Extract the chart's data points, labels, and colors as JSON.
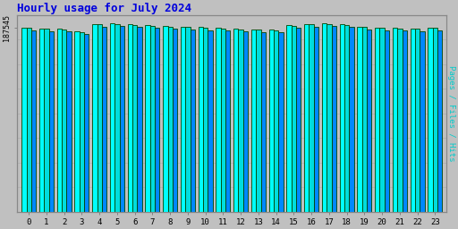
{
  "title": "Hourly usage for July 2024",
  "title_color": "#0000dd",
  "title_fontsize": 9,
  "hours": [
    0,
    1,
    2,
    3,
    4,
    5,
    6,
    7,
    8,
    9,
    10,
    11,
    12,
    13,
    14,
    15,
    16,
    17,
    18,
    19,
    20,
    21,
    22,
    23
  ],
  "pages": [
    187200,
    186500,
    185900,
    183200,
    191000,
    191500,
    190800,
    189800,
    189000,
    188400,
    187800,
    187100,
    186400,
    185700,
    185000,
    189800,
    191200,
    191600,
    190900,
    188300,
    187500,
    187000,
    186400,
    187300
  ],
  "files": [
    186800,
    186000,
    185400,
    182700,
    190400,
    190800,
    190100,
    189200,
    188400,
    187800,
    187100,
    186400,
    185800,
    185100,
    184400,
    189100,
    190500,
    190900,
    190200,
    187700,
    186900,
    186400,
    185900,
    186800
  ],
  "hits": [
    184500,
    183800,
    183200,
    180500,
    188200,
    188600,
    187900,
    187000,
    186200,
    185600,
    184900,
    184200,
    183600,
    182900,
    182200,
    186900,
    188300,
    188700,
    188000,
    185500,
    184700,
    184200,
    183700,
    184600
  ],
  "ytick_label": "187545",
  "bar_color_pages": "#00ffff",
  "bar_color_files": "#00dddd",
  "bar_color_hits": "#0088ff",
  "bar_edge_color": "#004400",
  "background_color": "#c0c0c0",
  "plot_bg_color": "#c0c0c0",
  "ylim_min": 0,
  "ylim_max": 200000,
  "ylabel_right": "Pages / Files / Hits",
  "ylabel_right_color": "#00cccc",
  "grid_color": "#aaaaaa"
}
